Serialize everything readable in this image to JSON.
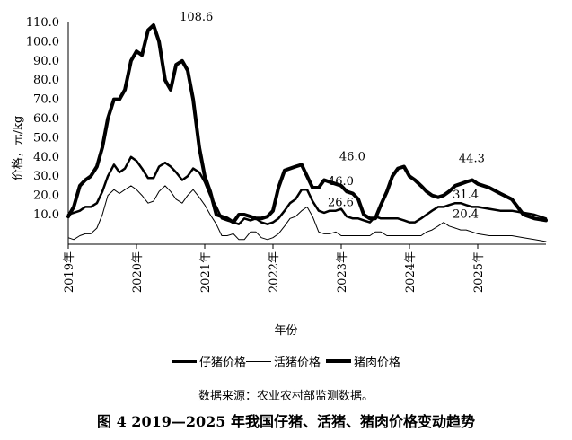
{
  "chart_data": {
    "type": "line",
    "title": "",
    "xlabel": "年份",
    "ylabel": "价格，元/kg",
    "ylim": [
      0,
      110
    ],
    "y_ticks": [
      "10.0",
      "20.0",
      "30.0",
      "40.0",
      "50.0",
      "60.0",
      "70.0",
      "80.0",
      "90.0",
      "100.0",
      "110.0"
    ],
    "x_ticks": [
      "2019年",
      "2020年",
      "2021年",
      "2022年",
      "2023年",
      "2024年",
      "2025年"
    ],
    "grid": false,
    "legend_position": "bottom",
    "x_range": [
      2019.0,
      2026.0
    ],
    "series": [
      {
        "name": "仔猪价格",
        "style": "medium",
        "x": [
          2019.0,
          2019.08,
          2019.17,
          2019.25,
          2019.33,
          2019.42,
          2019.5,
          2019.58,
          2019.67,
          2019.75,
          2019.83,
          2019.92,
          2020.0,
          2020.08,
          2020.17,
          2020.25,
          2020.33,
          2020.42,
          2020.5,
          2020.58,
          2020.67,
          2020.75,
          2020.83,
          2020.92,
          2021.0,
          2021.08,
          2021.17,
          2021.25,
          2021.33,
          2021.42,
          2021.5,
          2021.58,
          2021.67,
          2021.75,
          2021.83,
          2021.92,
          2022.0,
          2022.08,
          2022.17,
          2022.25,
          2022.33,
          2022.42,
          2022.5,
          2022.58,
          2022.67,
          2022.75,
          2022.83,
          2022.92,
          2023.0,
          2023.08,
          2023.17,
          2023.25,
          2023.33,
          2023.42,
          2023.5,
          2023.58,
          2023.67,
          2023.75,
          2023.83,
          2023.92,
          2024.0,
          2024.08,
          2024.17,
          2024.25,
          2024.33,
          2024.42,
          2024.5,
          2024.58,
          2024.67,
          2024.75,
          2024.83,
          2024.92,
          2025.0,
          2025.17,
          2025.33,
          2025.5,
          2025.67,
          2025.83,
          2026.0
        ],
        "y": [
          10,
          11,
          12,
          14,
          14,
          16,
          22,
          30,
          36,
          32,
          34,
          40,
          38,
          34,
          29,
          29,
          35,
          37,
          35,
          32,
          28,
          30,
          34,
          32,
          27,
          20,
          14,
          8,
          7,
          6,
          5,
          8,
          7,
          8,
          6,
          5,
          6,
          8,
          12,
          16,
          18,
          23,
          23,
          17,
          12,
          11,
          12,
          12,
          13,
          9,
          8,
          8,
          7,
          6,
          9,
          8,
          8,
          8,
          8,
          7,
          6,
          6,
          8,
          10,
          12,
          14,
          14,
          15,
          16,
          16,
          15,
          14,
          14,
          13,
          12,
          12,
          11,
          10,
          8
        ]
      },
      {
        "name": "活猪价格",
        "style": "thin",
        "x": [
          2019.0,
          2019.08,
          2019.17,
          2019.25,
          2019.33,
          2019.42,
          2019.5,
          2019.58,
          2019.67,
          2019.75,
          2019.83,
          2019.92,
          2020.0,
          2020.08,
          2020.17,
          2020.25,
          2020.33,
          2020.42,
          2020.5,
          2020.58,
          2020.67,
          2020.75,
          2020.83,
          2020.92,
          2021.0,
          2021.08,
          2021.17,
          2021.25,
          2021.33,
          2021.42,
          2021.5,
          2021.58,
          2021.67,
          2021.75,
          2021.83,
          2021.92,
          2022.0,
          2022.08,
          2022.17,
          2022.25,
          2022.33,
          2022.42,
          2022.5,
          2022.58,
          2022.67,
          2022.75,
          2022.83,
          2022.92,
          2023.0,
          2023.08,
          2023.17,
          2023.25,
          2023.33,
          2023.42,
          2023.5,
          2023.58,
          2023.67,
          2023.75,
          2023.83,
          2023.92,
          2024.0,
          2024.08,
          2024.17,
          2024.25,
          2024.33,
          2024.42,
          2024.5,
          2024.58,
          2024.67,
          2024.75,
          2024.83,
          2024.92,
          2025.0,
          2025.17,
          2025.33,
          2025.5,
          2025.67,
          2025.83,
          2026.0
        ],
        "y": [
          -2,
          -3,
          -1,
          0,
          0,
          3,
          10,
          20,
          23,
          21,
          23,
          25,
          23,
          20,
          16,
          17,
          22,
          25,
          22,
          18,
          16,
          20,
          23,
          19,
          15,
          10,
          5,
          -1,
          -1,
          0,
          -3,
          -3,
          1,
          1,
          -2,
          -3,
          -2,
          0,
          4,
          8,
          9,
          12,
          14,
          9,
          1,
          0,
          0,
          1,
          -1,
          -1,
          -1,
          -1,
          -1,
          -1,
          1,
          1,
          -1,
          -1,
          -1,
          -1,
          -1,
          -1,
          -1,
          1,
          2,
          4,
          6,
          4,
          3,
          2,
          2,
          1,
          0,
          -1,
          -1,
          -1,
          -2,
          -3,
          -4
        ]
      },
      {
        "name": "猪肉价格",
        "style": "thick",
        "x": [
          2019.0,
          2019.08,
          2019.17,
          2019.25,
          2019.33,
          2019.42,
          2019.5,
          2019.58,
          2019.67,
          2019.75,
          2019.83,
          2019.92,
          2020.0,
          2020.08,
          2020.17,
          2020.25,
          2020.33,
          2020.42,
          2020.5,
          2020.58,
          2020.67,
          2020.75,
          2020.83,
          2020.92,
          2021.0,
          2021.08,
          2021.17,
          2021.25,
          2021.33,
          2021.42,
          2021.5,
          2021.58,
          2021.67,
          2021.75,
          2021.83,
          2021.92,
          2022.0,
          2022.08,
          2022.17,
          2022.25,
          2022.33,
          2022.42,
          2022.5,
          2022.58,
          2022.67,
          2022.75,
          2022.83,
          2022.92,
          2023.0,
          2023.08,
          2023.17,
          2023.25,
          2023.33,
          2023.42,
          2023.5,
          2023.58,
          2023.67,
          2023.75,
          2023.83,
          2023.92,
          2024.0,
          2024.08,
          2024.17,
          2024.25,
          2024.33,
          2024.42,
          2024.5,
          2024.58,
          2024.67,
          2024.75,
          2024.83,
          2024.92,
          2025.0,
          2025.17,
          2025.33,
          2025.5,
          2025.67,
          2025.83,
          2026.0
        ],
        "y": [
          9,
          14,
          25,
          28,
          30,
          35,
          45,
          60,
          70,
          70,
          75,
          90,
          95,
          93,
          106,
          108.6,
          100,
          80,
          75,
          88,
          90,
          85,
          70,
          45,
          30,
          22,
          10,
          9,
          8,
          6,
          10,
          10,
          9,
          8,
          8,
          9,
          12,
          24,
          33,
          34,
          35,
          36,
          30,
          24,
          24,
          28,
          27,
          26,
          25,
          22,
          21,
          18,
          10,
          8,
          8,
          15,
          22,
          30,
          34,
          35,
          30,
          28,
          25,
          22,
          20,
          19,
          20,
          22,
          25,
          26,
          27,
          28,
          26,
          24,
          21,
          18,
          10,
          8,
          7
        ]
      }
    ],
    "annotations": [
      {
        "text": "108.6",
        "series": "猪肉价格",
        "x": 2020.58,
        "y": 108.6
      },
      {
        "text": "46.0",
        "series": "猪肉价格",
        "x": 2022.92,
        "y": 36.0
      },
      {
        "text": "46.0",
        "series": "仔猪价格",
        "x": 2022.75,
        "y": 23.0
      },
      {
        "text": "26.6",
        "series": "活猪价格",
        "x": 2022.75,
        "y": 12.0
      },
      {
        "text": "44.3",
        "series": "猪肉价格",
        "x": 2024.67,
        "y": 35.0
      },
      {
        "text": "31.4",
        "series": "仔猪价格",
        "x": 2024.58,
        "y": 16.0
      },
      {
        "text": "20.4",
        "series": "活猪价格",
        "x": 2024.58,
        "y": 6.0
      }
    ]
  },
  "legend": {
    "items": [
      {
        "label": "仔猪价格",
        "style": "medium"
      },
      {
        "label": "活猪价格",
        "style": "thin"
      },
      {
        "label": "猪肉价格",
        "style": "thick"
      }
    ]
  },
  "source_note": "数据来源：农业农村部监测数据。",
  "caption": "图 4 2019—2025 年我国仔猪、活猪、猪肉价格变动趋势"
}
